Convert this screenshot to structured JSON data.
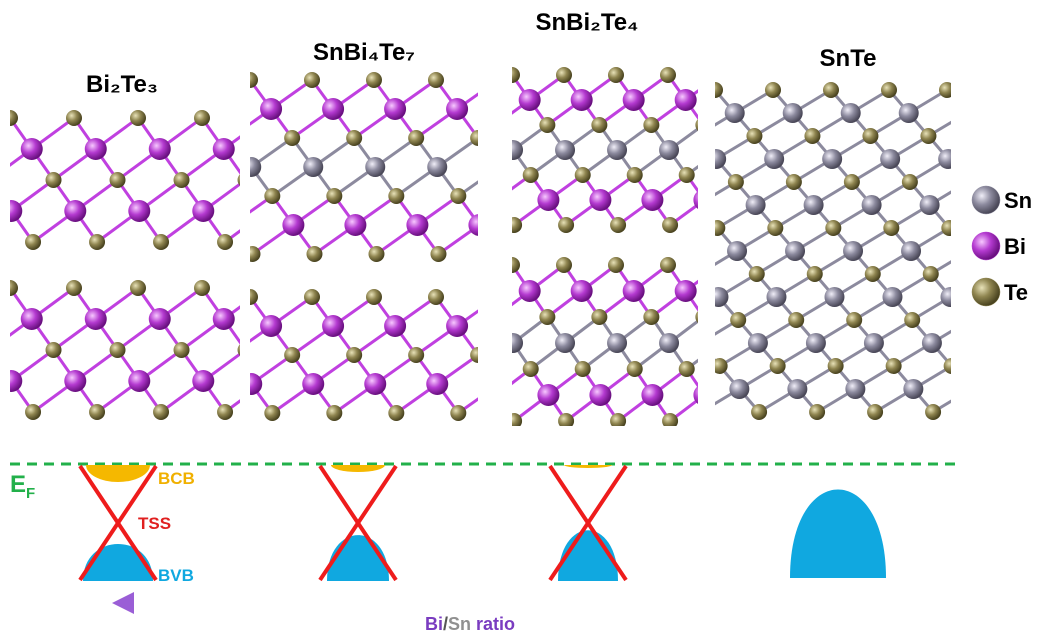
{
  "structures": [
    {
      "label": "Bi₂Te₃"
    },
    {
      "label": "SnBi₄Te₇"
    },
    {
      "label": "SnBi₂Te₄"
    },
    {
      "label": "SnTe"
    }
  ],
  "legend": [
    {
      "label": "Sn",
      "color": "#8c8a9e"
    },
    {
      "label": "Bi",
      "color": "#b43ad0"
    },
    {
      "label": "Te",
      "color": "#8f8550"
    }
  ],
  "fermi_level": {
    "main": "E",
    "sub": "F"
  },
  "band_labels": {
    "bcb": "BCB",
    "tss": "TSS",
    "bvb": "BVB"
  },
  "ratio_axis": {
    "parts": [
      "Bi",
      "/",
      "Sn",
      " ratio"
    ]
  }
}
